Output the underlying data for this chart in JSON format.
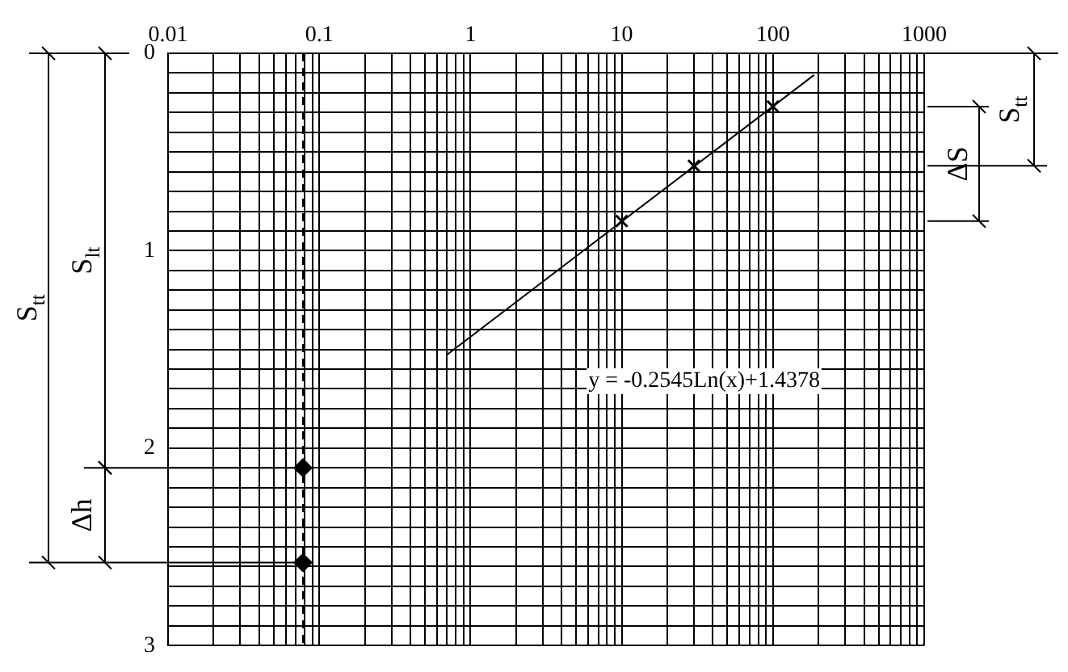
{
  "chart_data": {
    "type": "scatter",
    "log": "x",
    "grid": true,
    "xlim": [
      0.01,
      1000
    ],
    "ylim": [
      3,
      0
    ],
    "xticks": [
      0.01,
      {
        "value": 0.02,
        "label": null
      },
      {
        "value": 0.03,
        "label": null
      },
      {
        "value": 0.04,
        "label": null
      },
      {
        "value": 0.05,
        "label": null
      },
      {
        "value": 0.06,
        "label": null
      },
      {
        "value": 0.07,
        "label": null
      },
      {
        "value": 0.08,
        "label": null
      },
      {
        "value": 0.09,
        "label": null
      },
      0.1,
      {
        "value": 0.2,
        "label": null
      },
      {
        "value": 0.3,
        "label": null
      },
      {
        "value": 0.4,
        "label": null
      },
      {
        "value": 0.5,
        "label": null
      },
      {
        "value": 0.6,
        "label": null
      },
      {
        "value": 0.7,
        "label": null
      },
      {
        "value": 0.8,
        "label": null
      },
      {
        "value": 0.9,
        "label": null
      },
      1,
      {
        "value": 2,
        "label": null
      },
      {
        "value": 3,
        "label": null
      },
      {
        "value": 4,
        "label": null
      },
      {
        "value": 5,
        "label": null
      },
      {
        "value": 6,
        "label": null
      },
      {
        "value": 7,
        "label": null
      },
      {
        "value": 8,
        "label": null
      },
      {
        "value": 9,
        "label": null
      },
      10,
      {
        "value": 20,
        "label": null
      },
      {
        "value": 30,
        "label": null
      },
      {
        "value": 40,
        "label": null
      },
      {
        "value": 50,
        "label": null
      },
      {
        "value": 60,
        "label": null
      },
      {
        "value": 70,
        "label": null
      },
      {
        "value": 80,
        "label": null
      },
      {
        "value": 90,
        "label": null
      },
      100,
      {
        "value": 200,
        "label": null
      },
      {
        "value": 300,
        "label": null
      },
      {
        "value": 400,
        "label": null
      },
      {
        "value": 500,
        "label": null
      },
      {
        "value": 600,
        "label": null
      },
      {
        "value": 700,
        "label": null
      },
      {
        "value": 800,
        "label": null
      },
      {
        "value": 900,
        "label": null
      },
      1000
    ],
    "yticks": [
      0,
      {
        "value": 0.1,
        "label": null
      },
      {
        "value": 0.2,
        "label": null
      },
      {
        "value": 0.3,
        "label": null
      },
      {
        "value": 0.4,
        "label": null
      },
      {
        "value": 0.5,
        "label": null
      },
      {
        "value": 0.6,
        "label": null
      },
      {
        "value": 0.7,
        "label": null
      },
      {
        "value": 0.8,
        "label": null
      },
      {
        "value": 0.9,
        "label": null
      },
      1,
      {
        "value": 1.1,
        "label": null
      },
      {
        "value": 1.2,
        "label": null
      },
      {
        "value": 1.3,
        "label": null
      },
      {
        "value": 1.4,
        "label": null
      },
      {
        "value": 1.5,
        "label": null
      },
      {
        "value": 1.6,
        "label": null
      },
      {
        "value": 1.7,
        "label": null
      },
      {
        "value": 1.8,
        "label": null
      },
      {
        "value": 1.9,
        "label": null
      },
      2,
      {
        "value": 2.1,
        "label": null
      },
      {
        "value": 2.2,
        "label": null
      },
      {
        "value": 2.3,
        "label": null
      },
      {
        "value": 2.4,
        "label": null
      },
      {
        "value": 2.5,
        "label": null
      },
      {
        "value": 2.6,
        "label": null
      },
      {
        "value": 2.7,
        "label": null
      },
      {
        "value": 2.8,
        "label": null
      },
      {
        "value": 2.9,
        "label": null
      },
      3
    ],
    "series": [
      {
        "type": "line",
        "color": "#000000",
        "marker": "none",
        "x": [
          0.69,
          187
        ],
        "values": [
          1.53,
          0.11
        ]
      },
      {
        "type": "scatter",
        "color": "#000000",
        "marker": "cross",
        "x": [
          10,
          30,
          100
        ],
        "values": [
          0.85,
          0.57,
          0.27
        ]
      },
      {
        "type": "scatter",
        "color": "#000000",
        "marker": "diamond",
        "x": [
          0.078,
          0.078
        ],
        "values": [
          2.1,
          2.58
        ]
      }
    ],
    "ref_lines": [
      {
        "axis": "x",
        "value": 0.078,
        "line_style": "dashed",
        "color": "#000000"
      }
    ],
    "annotations": [
      "S$_{tt}$",
      "S$_{lt}$",
      "Δh",
      "S$_{tt}$",
      "ΔS",
      "y = -0.2545Ln(x)+1.4378"
    ]
  }
}
